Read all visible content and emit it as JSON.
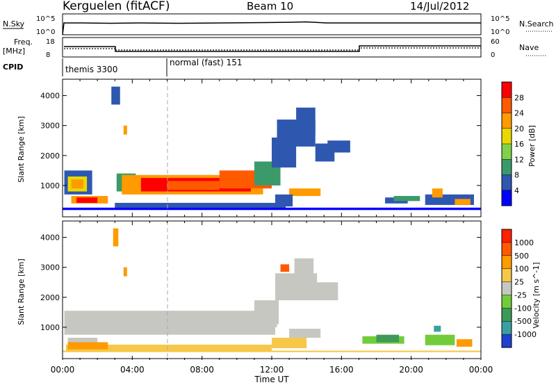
{
  "header": {
    "station": "Kerguelen (fitACF)",
    "beam": "Beam 10",
    "date": "14/Jul/2012"
  },
  "panels": {
    "nsky_label": "N.Sky",
    "nsearch_label": "N.Search",
    "freq_label_1": "Freq.",
    "freq_label_2": "[MHz]",
    "nave_label": "Nave",
    "cpid_label": "CPID",
    "cpid_1": "themis 3300",
    "cpid_2": "normal (fast) 151",
    "nsky_ticks": [
      "10^5",
      "10^0"
    ],
    "nsearch_ticks": [
      "10^5",
      "10^0"
    ],
    "freq_ticks": [
      "18",
      "8"
    ],
    "nave_ticks": [
      "60",
      "0"
    ]
  },
  "chart_data": [
    {
      "type": "heatmap",
      "name": "power",
      "ylabel": "Slant Range [km]",
      "yticks": [
        "4000",
        "3000",
        "2000",
        "1000"
      ],
      "colorbar_label": "Power [dB]",
      "colorbar_ticks": [
        "28",
        "24",
        "20",
        "16",
        "12",
        "8",
        "4"
      ],
      "colors": [
        "#0000ff",
        "#2e58b0",
        "#3c9a6a",
        "#7fd34a",
        "#e9d800",
        "#ff9a00",
        "#ff5a00",
        "#ff0000"
      ]
    },
    {
      "type": "heatmap",
      "name": "velocity",
      "ylabel": "Slant Range [km]",
      "yticks": [
        "4000",
        "3000",
        "2000",
        "1000"
      ],
      "colorbar_label": "Velocity [m s^-1]",
      "colorbar_ticks": [
        "1000",
        "500",
        "100",
        "25",
        "-25",
        "-100",
        "-500",
        "-1000"
      ],
      "colors": [
        "#2040d0",
        "#3a9fa0",
        "#3d9a58",
        "#72cc3a",
        "#c7c7c2",
        "#f6c84a",
        "#ff9a00",
        "#ff5a00",
        "#ff2000"
      ]
    }
  ],
  "time_axis": {
    "label": "Time UT",
    "ticks": [
      "00:00",
      "04:00",
      "08:00",
      "12:00",
      "16:00",
      "20:00",
      "00:00"
    ]
  }
}
